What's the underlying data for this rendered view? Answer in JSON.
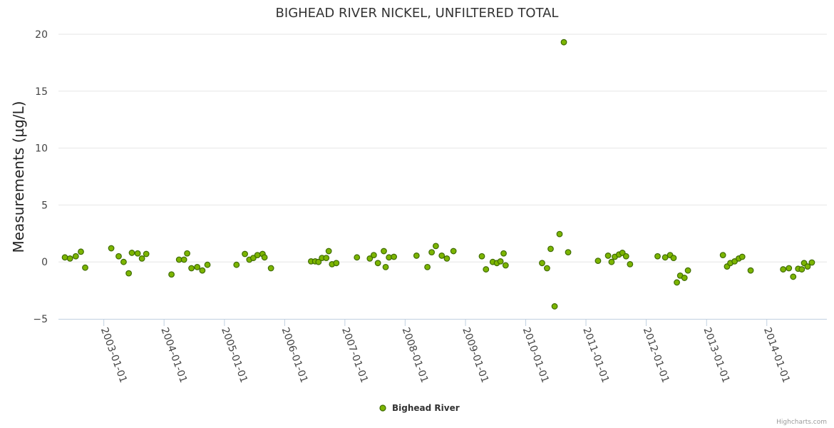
{
  "chart_data": {
    "type": "scatter",
    "title": "BIGHEAD RIVER NICKEL, UNFILTERED TOTAL",
    "xlabel": "",
    "ylabel": "Measurements (µg/L)",
    "ylim": [
      -5,
      20
    ],
    "yticks": [
      -5,
      0,
      5,
      10,
      15,
      20
    ],
    "xlim": [
      "2002-04-01",
      "2014-12-31"
    ],
    "xticks": [
      "2003-01-01",
      "2004-01-01",
      "2005-01-01",
      "2006-01-01",
      "2007-01-01",
      "2008-01-01",
      "2009-01-01",
      "2010-01-01",
      "2011-01-01",
      "2012-01-01",
      "2013-01-01",
      "2014-01-01"
    ],
    "grid": true,
    "legend": "bottom-center",
    "series": [
      {
        "name": "Bighead River",
        "color": "#7cb500",
        "points": [
          {
            "x": "2002-05-10",
            "y": 0.4
          },
          {
            "x": "2002-06-10",
            "y": 0.3
          },
          {
            "x": "2002-07-15",
            "y": 0.5
          },
          {
            "x": "2002-08-15",
            "y": 0.9
          },
          {
            "x": "2002-09-10",
            "y": -0.5
          },
          {
            "x": "2003-02-15",
            "y": 1.2
          },
          {
            "x": "2003-04-01",
            "y": 0.5
          },
          {
            "x": "2003-05-01",
            "y": 0.0
          },
          {
            "x": "2003-06-01",
            "y": -1.0
          },
          {
            "x": "2003-06-20",
            "y": 0.8
          },
          {
            "x": "2003-07-25",
            "y": 0.75
          },
          {
            "x": "2003-08-20",
            "y": 0.3
          },
          {
            "x": "2003-09-15",
            "y": 0.7
          },
          {
            "x": "2004-02-15",
            "y": -1.1
          },
          {
            "x": "2004-04-01",
            "y": 0.2
          },
          {
            "x": "2004-05-01",
            "y": 0.2
          },
          {
            "x": "2004-05-20",
            "y": 0.75
          },
          {
            "x": "2004-06-15",
            "y": -0.55
          },
          {
            "x": "2004-07-20",
            "y": -0.45
          },
          {
            "x": "2004-08-20",
            "y": -0.75
          },
          {
            "x": "2004-09-20",
            "y": -0.25
          },
          {
            "x": "2005-03-15",
            "y": -0.25
          },
          {
            "x": "2005-05-05",
            "y": 0.7
          },
          {
            "x": "2005-06-01",
            "y": 0.2
          },
          {
            "x": "2005-06-25",
            "y": 0.35
          },
          {
            "x": "2005-07-20",
            "y": 0.6
          },
          {
            "x": "2005-08-20",
            "y": 0.7
          },
          {
            "x": "2005-09-01",
            "y": 0.4
          },
          {
            "x": "2005-10-10",
            "y": -0.55
          },
          {
            "x": "2006-06-10",
            "y": 0.05
          },
          {
            "x": "2006-07-05",
            "y": 0.05
          },
          {
            "x": "2006-07-25",
            "y": 0.0
          },
          {
            "x": "2006-08-15",
            "y": 0.35
          },
          {
            "x": "2006-09-10",
            "y": 0.35
          },
          {
            "x": "2006-09-25",
            "y": 0.95
          },
          {
            "x": "2006-10-15",
            "y": -0.2
          },
          {
            "x": "2006-11-10",
            "y": -0.1
          },
          {
            "x": "2007-03-15",
            "y": 0.4
          },
          {
            "x": "2007-06-01",
            "y": 0.3
          },
          {
            "x": "2007-06-25",
            "y": 0.6
          },
          {
            "x": "2007-07-20",
            "y": -0.1
          },
          {
            "x": "2007-08-25",
            "y": 0.95
          },
          {
            "x": "2007-09-05",
            "y": -0.45
          },
          {
            "x": "2007-09-25",
            "y": 0.4
          },
          {
            "x": "2007-10-25",
            "y": 0.45
          },
          {
            "x": "2008-03-10",
            "y": 0.55
          },
          {
            "x": "2008-05-15",
            "y": -0.45
          },
          {
            "x": "2008-06-10",
            "y": 0.85
          },
          {
            "x": "2008-07-05",
            "y": 1.4
          },
          {
            "x": "2008-08-10",
            "y": 0.55
          },
          {
            "x": "2008-09-10",
            "y": 0.3
          },
          {
            "x": "2008-10-20",
            "y": 0.95
          },
          {
            "x": "2009-04-10",
            "y": 0.5
          },
          {
            "x": "2009-05-05",
            "y": -0.65
          },
          {
            "x": "2009-06-15",
            "y": 0.0
          },
          {
            "x": "2009-07-10",
            "y": -0.1
          },
          {
            "x": "2009-08-01",
            "y": 0.05
          },
          {
            "x": "2009-08-20",
            "y": 0.75
          },
          {
            "x": "2009-09-01",
            "y": -0.3
          },
          {
            "x": "2010-04-10",
            "y": -0.1
          },
          {
            "x": "2010-05-10",
            "y": -0.55
          },
          {
            "x": "2010-06-01",
            "y": 1.15
          },
          {
            "x": "2010-06-25",
            "y": -3.9
          },
          {
            "x": "2010-07-25",
            "y": 2.45
          },
          {
            "x": "2010-08-20",
            "y": 19.3
          },
          {
            "x": "2010-09-15",
            "y": 0.85
          },
          {
            "x": "2011-03-15",
            "y": 0.1
          },
          {
            "x": "2011-05-15",
            "y": 0.55
          },
          {
            "x": "2011-06-05",
            "y": 0.0
          },
          {
            "x": "2011-06-25",
            "y": 0.45
          },
          {
            "x": "2011-07-20",
            "y": 0.65
          },
          {
            "x": "2011-08-10",
            "y": 0.8
          },
          {
            "x": "2011-09-01",
            "y": 0.5
          },
          {
            "x": "2011-09-25",
            "y": -0.2
          },
          {
            "x": "2012-03-10",
            "y": 0.5
          },
          {
            "x": "2012-04-25",
            "y": 0.4
          },
          {
            "x": "2012-05-25",
            "y": 0.6
          },
          {
            "x": "2012-06-15",
            "y": 0.35
          },
          {
            "x": "2012-07-05",
            "y": -1.8
          },
          {
            "x": "2012-07-25",
            "y": -1.2
          },
          {
            "x": "2012-08-20",
            "y": -1.4
          },
          {
            "x": "2012-09-10",
            "y": -0.75
          },
          {
            "x": "2013-04-10",
            "y": 0.6
          },
          {
            "x": "2013-05-05",
            "y": -0.4
          },
          {
            "x": "2013-05-25",
            "y": -0.1
          },
          {
            "x": "2013-06-20",
            "y": 0.05
          },
          {
            "x": "2013-07-15",
            "y": 0.3
          },
          {
            "x": "2013-08-05",
            "y": 0.45
          },
          {
            "x": "2013-09-25",
            "y": -0.75
          },
          {
            "x": "2014-04-10",
            "y": -0.65
          },
          {
            "x": "2014-05-15",
            "y": -0.55
          },
          {
            "x": "2014-06-10",
            "y": -1.3
          },
          {
            "x": "2014-07-10",
            "y": -0.6
          },
          {
            "x": "2014-08-01",
            "y": -0.65
          },
          {
            "x": "2014-08-15",
            "y": -0.1
          },
          {
            "x": "2014-09-05",
            "y": -0.4
          },
          {
            "x": "2014-10-01",
            "y": -0.05
          }
        ]
      }
    ]
  },
  "credits": "Highcharts.com"
}
